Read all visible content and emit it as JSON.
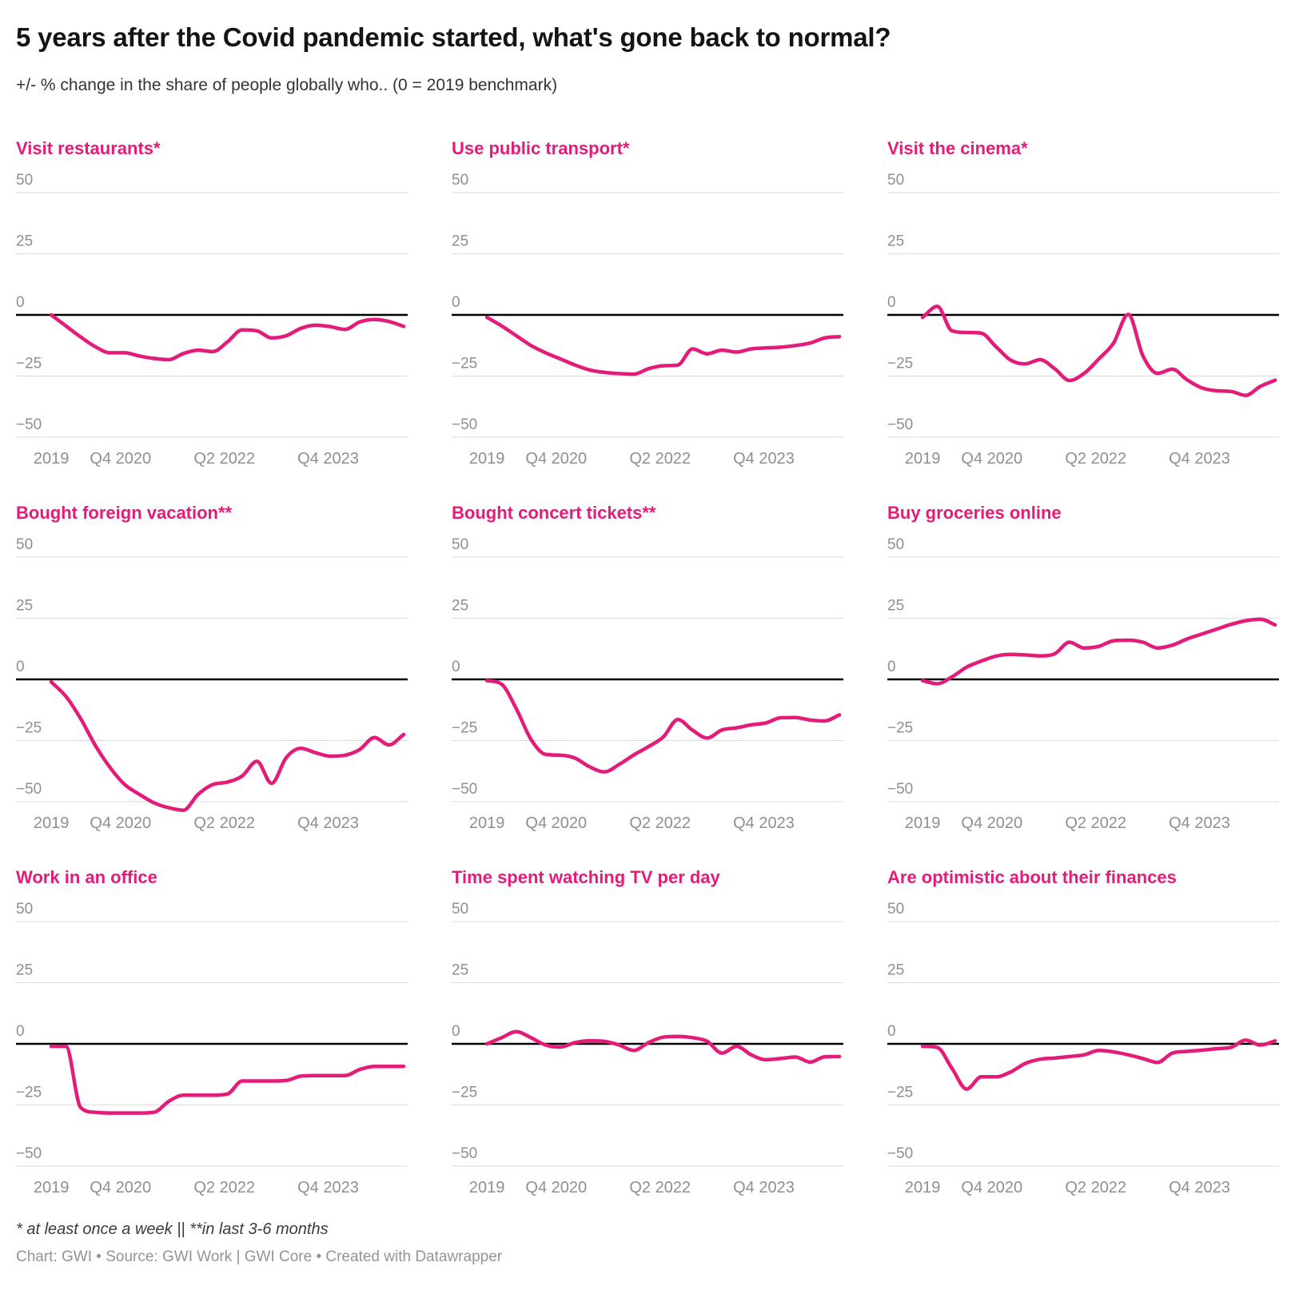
{
  "header": {
    "title": "5 years after the Covid pandemic started, what's gone back to normal?",
    "subtitle": "+/- % change in the share of people globally who.. (0 = 2019 benchmark)"
  },
  "footer": {
    "footnote": "* at least once a week || **in last 3-6 months",
    "byline": "Chart: GWI • Source: GWI Work | GWI Core • Created with Datawrapper"
  },
  "colors": {
    "line": "#e31c79",
    "panel_title": "#e31c79",
    "zero_line": "#000000",
    "gridline": "#dadada",
    "tick_text": "#8f8f8f"
  },
  "chart_data": {
    "type": "line",
    "title": "5 years after the Covid pandemic started, what's gone back to normal?",
    "ylabel": "+/- % change vs 2019 benchmark",
    "ylim": [
      -50,
      50
    ],
    "grid": "horizontal-only",
    "legend": "none",
    "y_ticks": [
      {
        "label": "50",
        "value": 50
      },
      {
        "label": "25",
        "value": 25
      },
      {
        "label": "0",
        "value": 0
      },
      {
        "label": "−25",
        "value": -25
      },
      {
        "label": "−50",
        "value": -50
      }
    ],
    "x_ticks": [
      {
        "label": "2019",
        "f": 0.09
      },
      {
        "label": "Q4 2020",
        "f": 0.267
      },
      {
        "label": "Q2 2022",
        "f": 0.532
      },
      {
        "label": "Q4 2023",
        "f": 0.797
      }
    ],
    "x_start_f": 0.09,
    "x_end_f": 0.99,
    "x_note": "first point = 2019 benchmark, then survey waves to early 2025, evenly spaced samples",
    "series": [
      {
        "name": "Visit restaurants*",
        "values": [
          0,
          -4.5,
          -9,
          -13,
          -15.5,
          -15.5,
          -16.8,
          -17.8,
          -18.3,
          -15.8,
          -14.4,
          -15,
          -11,
          -6.1,
          -6.5,
          -9.4,
          -8.5,
          -5.5,
          -4.2,
          -4.8,
          -5.9,
          -2.9,
          -1.9,
          -2.7,
          -4.7
        ]
      },
      {
        "name": "Use public transport*",
        "values": [
          -1,
          -4.5,
          -8.5,
          -12.5,
          -15.5,
          -18,
          -20.5,
          -22.5,
          -23.5,
          -24,
          -24.2,
          -22,
          -20.8,
          -20.5,
          -13.9,
          -15.9,
          -14.4,
          -15.2,
          -13.9,
          -13.5,
          -13.2,
          -12.5,
          -11.5,
          -9.4,
          -8.9
        ]
      },
      {
        "name": "Visit the cinema*",
        "values": [
          -1,
          3.5,
          -6.5,
          -7.2,
          -7.5,
          -13,
          -18.5,
          -20,
          -18.3,
          -22,
          -26.8,
          -23.9,
          -18,
          -11.5,
          0.2,
          -16.7,
          -23.9,
          -22.2,
          -26.5,
          -29.8,
          -31,
          -31.3,
          -32.9,
          -29.2,
          -26.7
        ]
      },
      {
        "name": "Bought foreign vacation**",
        "values": [
          -1,
          -7,
          -16,
          -27,
          -36,
          -43,
          -47,
          -50.5,
          -52.5,
          -53.5,
          -47,
          -43,
          -42,
          -39.5,
          -33.5,
          -42.5,
          -32,
          -28.2,
          -30,
          -31.4,
          -31,
          -28.7,
          -23.8,
          -26.8,
          -22.5
        ]
      },
      {
        "name": "Bought concert tickets**",
        "values": [
          -0.5,
          -2,
          -12,
          -24.5,
          -30.7,
          -31,
          -32.2,
          -35.8,
          -37.8,
          -34.8,
          -30.9,
          -27.5,
          -23.6,
          -16.4,
          -20.8,
          -24,
          -20.7,
          -19.8,
          -18.6,
          -17.8,
          -15.7,
          -15.6,
          -16.6,
          -17,
          -14.5
        ]
      },
      {
        "name": "Buy groceries online",
        "values": [
          -0.5,
          -1.8,
          1,
          5,
          7.5,
          9.5,
          10.2,
          10,
          9.6,
          10.5,
          15.2,
          12.8,
          13.5,
          15.8,
          16,
          15.2,
          12.8,
          14,
          16.5,
          18.5,
          20.5,
          22.5,
          24,
          24.6,
          22.3
        ]
      },
      {
        "name": "Work in an office",
        "values": [
          -1,
          -1,
          -26,
          -28,
          -28.3,
          -28.3,
          -28.3,
          -28,
          -23.5,
          -21,
          -21,
          -21,
          -20.5,
          -15.2,
          -15.2,
          -15.2,
          -15,
          -13.2,
          -13,
          -13,
          -13,
          -10.5,
          -9.2,
          -9.2,
          -9.2
        ]
      },
      {
        "name": "Time spent watching TV per day",
        "values": [
          0,
          2.5,
          5,
          2.5,
          -0.5,
          -1.3,
          0.5,
          1.2,
          1,
          -0.5,
          -2.7,
          0.5,
          2.7,
          3,
          2.5,
          1,
          -3.8,
          -1,
          -4.5,
          -6.5,
          -6,
          -5.4,
          -7.5,
          -5.3,
          -5.2
        ]
      },
      {
        "name": "Are optimistic about their finances",
        "values": [
          -1,
          -1.5,
          -10,
          -18.5,
          -13.5,
          -13.5,
          -11.5,
          -8,
          -6.3,
          -5.8,
          -5.2,
          -4.5,
          -2.7,
          -3.3,
          -4.5,
          -6,
          -7.6,
          -3.8,
          -3.1,
          -2.6,
          -2,
          -1.4,
          1.5,
          -0.5,
          1.2
        ]
      }
    ]
  }
}
